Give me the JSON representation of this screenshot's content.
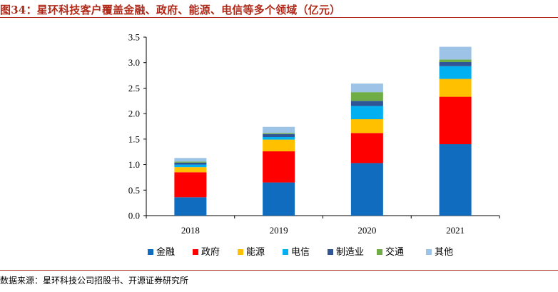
{
  "figure": {
    "title": "图34：星环科技客户覆盖金融、政府、能源、电信等多个领域（亿元）",
    "source": "数据来源：星环科技公司招股书、开源证券研究所"
  },
  "chart_data": {
    "type": "bar",
    "stacked": true,
    "categories": [
      "2018",
      "2019",
      "2020",
      "2021"
    ],
    "ylim": [
      0,
      3.5
    ],
    "yticks": [
      "0.0",
      "0.5",
      "1.0",
      "1.5",
      "2.0",
      "2.5",
      "3.0",
      "3.5"
    ],
    "grid": false,
    "legend_position": "bottom",
    "series": [
      {
        "name": "金融",
        "color": "#0f6cbf",
        "values": [
          0.36,
          0.65,
          1.03,
          1.4
        ]
      },
      {
        "name": "政府",
        "color": "#ff0000",
        "values": [
          0.49,
          0.61,
          0.59,
          0.93
        ]
      },
      {
        "name": "能源",
        "color": "#ffc000",
        "values": [
          0.1,
          0.23,
          0.27,
          0.35
        ]
      },
      {
        "name": "电信",
        "color": "#00b0f0",
        "values": [
          0.05,
          0.05,
          0.26,
          0.25
        ]
      },
      {
        "name": "制造业",
        "color": "#2f5597",
        "values": [
          0.04,
          0.06,
          0.1,
          0.08
        ]
      },
      {
        "name": "交通",
        "color": "#70ad47",
        "values": [
          0.02,
          0.02,
          0.17,
          0.05
        ]
      },
      {
        "name": "其他",
        "color": "#9dc3e6",
        "values": [
          0.07,
          0.12,
          0.17,
          0.25
        ]
      }
    ]
  }
}
